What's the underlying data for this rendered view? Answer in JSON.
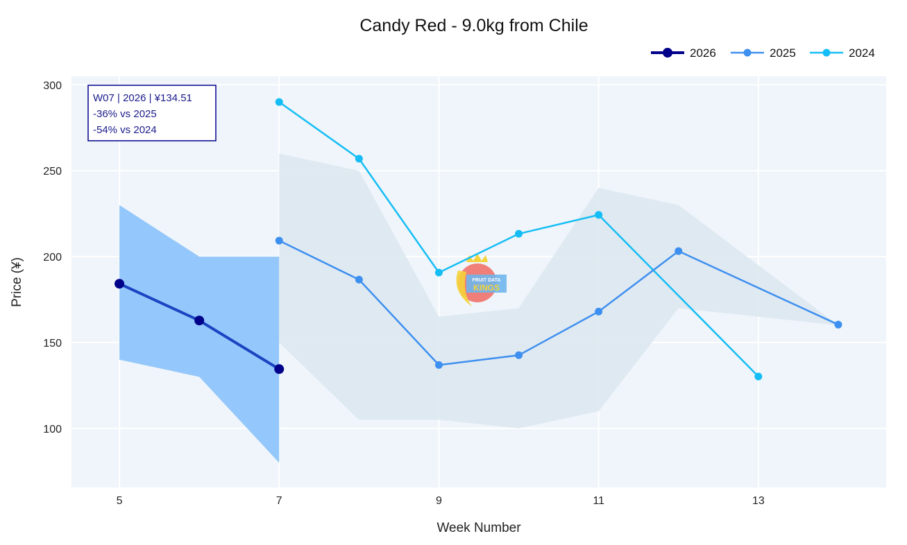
{
  "chart_data": {
    "type": "line",
    "title": "Candy Red - 9.0kg from Chile",
    "xlabel": "Week Number",
    "ylabel": "Price (¥)",
    "xlim": [
      4.4,
      14.6
    ],
    "ylim": [
      65.6,
      305
    ],
    "x_ticks": [
      5,
      7,
      9,
      11,
      13
    ],
    "y_ticks": [
      100,
      150,
      200,
      250,
      300
    ],
    "grid": true,
    "legend_position": "top-right",
    "series": [
      {
        "name": "2026",
        "color": "#00008b",
        "line_color": "#1a44c2",
        "x": [
          5,
          6,
          7
        ],
        "values": [
          184.2,
          162.8,
          134.51
        ]
      },
      {
        "name": "2025",
        "color": "#3d8ff0",
        "x": [
          7,
          8,
          9,
          10,
          11,
          12,
          14
        ],
        "values": [
          209.3,
          186.6,
          136.9,
          142.6,
          168.0,
          203.2,
          160.4
        ]
      },
      {
        "name": "2024",
        "color": "#14bdf5",
        "x": [
          7,
          8,
          9,
          10,
          11,
          13
        ],
        "values": [
          290.0,
          257.0,
          190.7,
          213.3,
          224.3,
          130.2
        ]
      }
    ],
    "bands": [
      {
        "name": "2026 range",
        "color": "#8ac2fb",
        "x": [
          5,
          6,
          7
        ],
        "upper": [
          230,
          200,
          200
        ],
        "lower": [
          140,
          130,
          80
        ]
      },
      {
        "name": "historical range",
        "color": "#dde8f0",
        "x": [
          7,
          8,
          9,
          10,
          11,
          12,
          13,
          14
        ],
        "upper": [
          260,
          250,
          165,
          170,
          240,
          230,
          195,
          160
        ],
        "lower": [
          150,
          105,
          105,
          100,
          110,
          170,
          165,
          160
        ]
      }
    ],
    "annotation": {
      "lines": [
        "W07 | 2026 | ¥134.51",
        "-36% vs 2025",
        "-54% vs 2024"
      ]
    },
    "watermark": "FRUIT DATA KINGS .com"
  }
}
